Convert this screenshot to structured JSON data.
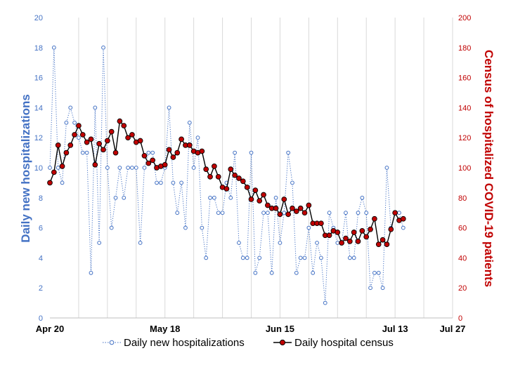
{
  "chart_data": {
    "type": "line",
    "x_unit": "days since Apr 20",
    "x_range": [
      0,
      98
    ],
    "x_ticks": [
      {
        "day": 0,
        "label": "Apr 20"
      },
      {
        "day": 28,
        "label": "May 18"
      },
      {
        "day": 56,
        "label": "Jun 15"
      },
      {
        "day": 84,
        "label": "Jul 13"
      },
      {
        "day": 98,
        "label": "Jul 27"
      }
    ],
    "vertical_gridlines_every_days": 7,
    "y_left": {
      "label": "Daily new hospitalizations",
      "range": [
        0,
        20
      ],
      "ticks": [
        "0",
        "2",
        "4",
        "6",
        "8",
        "10",
        "12",
        "14",
        "16",
        "18",
        "20"
      ],
      "color": "#4472c4"
    },
    "y_right": {
      "label": "Census of hospitalized COVID-19  patients",
      "range": [
        0,
        200
      ],
      "ticks": [
        "0",
        "20",
        "40",
        "60",
        "80",
        "100",
        "120",
        "140",
        "160",
        "180",
        "200"
      ],
      "color": "#c00000"
    },
    "series": [
      {
        "name": "Daily new hospitalizations",
        "axis": "left",
        "color": "#4472c4",
        "style": "dotted line with hollow circle markers",
        "x": [
          0,
          1,
          2,
          3,
          4,
          5,
          6,
          7,
          8,
          9,
          10,
          11,
          12,
          13,
          14,
          15,
          16,
          17,
          18,
          19,
          20,
          21,
          22,
          23,
          24,
          25,
          26,
          27,
          28,
          29,
          30,
          31,
          32,
          33,
          34,
          35,
          36,
          37,
          38,
          39,
          40,
          41,
          42,
          43,
          44,
          45,
          46,
          47,
          48,
          49,
          50,
          51,
          52,
          53,
          54,
          55,
          56,
          57,
          58,
          59,
          60,
          61,
          62,
          63,
          64,
          65,
          66,
          67,
          68,
          69,
          70,
          71,
          72,
          73,
          74,
          75,
          76,
          77,
          78,
          79,
          80,
          81,
          82,
          83,
          84,
          85,
          86
        ],
        "values": [
          10,
          18,
          10,
          9,
          13,
          14,
          13,
          12,
          11,
          11,
          3,
          14,
          5,
          18,
          10,
          6,
          8,
          10,
          8,
          10,
          10,
          10,
          5,
          10,
          11,
          11,
          9,
          9,
          10,
          14,
          9,
          7,
          9,
          6,
          13,
          10,
          12,
          6,
          4,
          8,
          8,
          7,
          7,
          9,
          8,
          11,
          5,
          4,
          4,
          11,
          3,
          4,
          7,
          7,
          3,
          8,
          5,
          7,
          11,
          9,
          3,
          4,
          4,
          6,
          3,
          5,
          4,
          1,
          7,
          6,
          5,
          5,
          7,
          4,
          4,
          7,
          8,
          7,
          2,
          3,
          3,
          2,
          10,
          6,
          7,
          7,
          6
        ]
      },
      {
        "name": "Daily hospital census",
        "axis": "right",
        "color": "#c00000",
        "line_color": "#000000",
        "style": "solid black line with red filled circle markers",
        "x": [
          0,
          1,
          2,
          3,
          4,
          5,
          6,
          7,
          8,
          9,
          10,
          11,
          12,
          13,
          14,
          15,
          16,
          17,
          18,
          19,
          20,
          21,
          22,
          23,
          24,
          25,
          26,
          27,
          28,
          29,
          30,
          31,
          32,
          33,
          34,
          35,
          36,
          37,
          38,
          39,
          40,
          41,
          42,
          43,
          44,
          45,
          46,
          47,
          48,
          49,
          50,
          51,
          52,
          53,
          54,
          55,
          56,
          57,
          58,
          59,
          60,
          61,
          62,
          63,
          64,
          65,
          66,
          67,
          68,
          69,
          70,
          71,
          72,
          73,
          74,
          75,
          76,
          77,
          78,
          79,
          80,
          81,
          82,
          83,
          84,
          85,
          86
        ],
        "values": [
          90,
          97,
          115,
          101,
          110,
          115,
          122,
          128,
          122,
          117,
          119,
          102,
          116,
          112,
          118,
          124,
          110,
          131,
          128,
          120,
          122,
          117,
          118,
          108,
          103,
          105,
          100,
          101,
          102,
          112,
          107,
          110,
          119,
          115,
          115,
          111,
          110,
          111,
          99,
          94,
          101,
          94,
          87,
          86,
          99,
          95,
          93,
          91,
          87,
          79,
          85,
          78,
          82,
          75,
          73,
          73,
          69,
          79,
          69,
          73,
          71,
          73,
          70,
          75,
          63,
          63,
          63,
          55,
          55,
          58,
          57,
          50,
          53,
          51,
          57,
          51,
          58,
          54,
          59,
          66,
          49,
          52,
          49,
          59,
          70,
          65,
          66
        ]
      }
    ],
    "legend_position": "bottom-center",
    "legend": [
      "Daily new hospitalizations",
      "Daily hospital census"
    ]
  }
}
